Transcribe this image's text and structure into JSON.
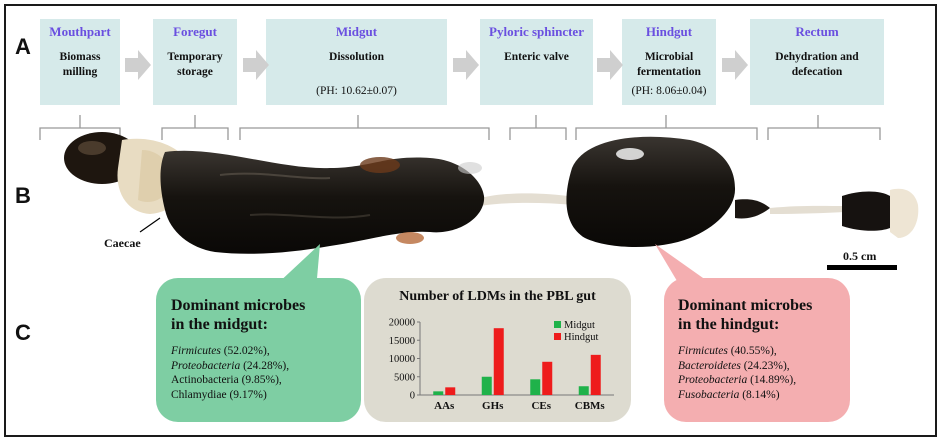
{
  "panels": {
    "a": "A",
    "b": "B",
    "c": "C"
  },
  "stages": [
    {
      "name": "Mouthpart",
      "desc": [
        "Biomass",
        "milling"
      ],
      "ph": ""
    },
    {
      "name": "Foregut",
      "desc": [
        "Temporary",
        "storage"
      ],
      "ph": ""
    },
    {
      "name": "Midgut",
      "desc": [
        "Dissolution"
      ],
      "ph": "(PH: 10.62±0.07)"
    },
    {
      "name": "Pyloric sphincter",
      "desc": [
        "Enteric valve"
      ],
      "ph": ""
    },
    {
      "name": "Hindgut",
      "desc": [
        "Microbial",
        "fermentation"
      ],
      "ph": "(PH: 8.06±0.04)"
    },
    {
      "name": "Rectum",
      "desc": [
        "Dehydration and",
        "defecation"
      ],
      "ph": ""
    }
  ],
  "photo": {
    "caecae_label": "Caecae",
    "scale_bar_label": "0.5 cm"
  },
  "midgut_box": {
    "title_line1": "Dominant microbes",
    "title_line2": "in the midgut:",
    "items": [
      {
        "name": "Firmicutes",
        "italic": true,
        "pct": "(52.02%),"
      },
      {
        "name": "Proteobacteria",
        "italic": true,
        "pct": "(24.28%),"
      },
      {
        "name": "Actinobacteria",
        "italic": false,
        "pct": "(9.85%),"
      },
      {
        "name": "Chlamydiae",
        "italic": false,
        "pct": "(9.17%)"
      }
    ]
  },
  "hindgut_box": {
    "title_line1": "Dominant microbes",
    "title_line2": "in the hindgut:",
    "items": [
      {
        "name": "Firmicutes",
        "italic": true,
        "pct": "(40.55%),"
      },
      {
        "name": "Bacteroidetes",
        "italic": true,
        "pct": "(24.23%),"
      },
      {
        "name": "Proteobacteria",
        "italic": true,
        "pct": "(14.89%),"
      },
      {
        "name": "Fusobacteria",
        "italic": true,
        "pct": "(8.14%)"
      }
    ]
  },
  "colors": {
    "stage_box": "#d6eaea",
    "stage_name": "#6a4fe0",
    "arrow": "#cfcfcf",
    "midgut_box": "#7ecea3",
    "hindgut_box": "#f4aeb0",
    "chart_box": "#dddbd0",
    "midgut_series": "#1fb24a",
    "hindgut_series": "#ee1c1c"
  },
  "chart_data": {
    "type": "bar",
    "title": "Number of LDMs in the PBL gut",
    "categories": [
      "AAs",
      "GHs",
      "CEs",
      "CBMs"
    ],
    "series": [
      {
        "name": "Midgut",
        "color": "#1fb24a",
        "values": [
          1000,
          5000,
          4300,
          2400
        ]
      },
      {
        "name": "Hindgut",
        "color": "#ee1c1c",
        "values": [
          2100,
          18300,
          9100,
          11000
        ]
      }
    ],
    "ylim": [
      0,
      20000
    ],
    "yticks": [
      0,
      5000,
      10000,
      15000,
      20000
    ],
    "ytick_labels": [
      "0",
      "5000",
      "10000",
      "15000",
      "20000"
    ],
    "grid": false,
    "legend_position": "top-right"
  }
}
